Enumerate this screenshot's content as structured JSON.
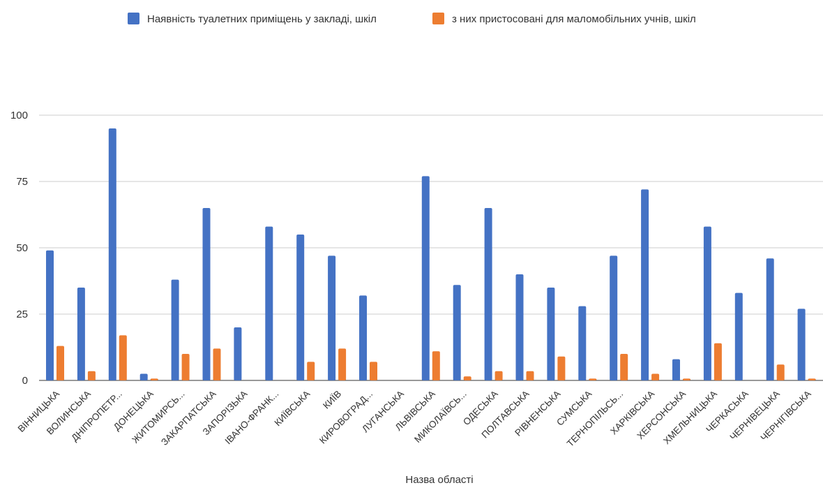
{
  "chart_data": {
    "type": "bar",
    "title": "",
    "xlabel": "Назва області",
    "ylabel": "",
    "ylim": [
      0,
      100
    ],
    "yticks": [
      0,
      25,
      50,
      75,
      100
    ],
    "grid": true,
    "legend_position": "top-center",
    "categories": [
      "ВІННИЦЬКА",
      "ВОЛИНСЬКА",
      "ДНІПРОПЕТР...",
      "ДОНЕЦЬКА",
      "ЖИТОМИРСЬ...",
      "ЗАКАРПАТСЬКА",
      "ЗАПОРІЗЬКА",
      "ІВАНО-ФРАНК...",
      "КИЇВСЬКА",
      "КИЇВ",
      "КИРОВОГРАД...",
      "ЛУГАНСЬКА",
      "ЛЬВІВСЬКА",
      "МИКОЛАЇВСЬ...",
      "ОДЕСЬКА",
      "ПОЛТАВСЬКА",
      "РІВНЕНСЬКА",
      "СУМСЬКА",
      "ТЕРНОПІЛЬСЬ...",
      "ХАРКІВСЬКА",
      "ХЕРСОНСЬКА",
      "ХМЕЛЬНИЦЬКА",
      "ЧЕРКАСЬКА",
      "ЧЕРНІВЕЦЬКА",
      "ЧЕРНІГІВСЬКА"
    ],
    "series": [
      {
        "name": "Наявність туалетних приміщень у закладі, шкіл",
        "color": "#4472c4",
        "values": [
          49,
          35,
          95,
          2.5,
          38,
          65,
          20,
          58,
          55,
          47,
          32,
          0,
          77,
          36,
          65,
          40,
          35,
          28,
          47,
          72,
          8,
          58,
          33,
          46,
          27
        ]
      },
      {
        "name": "з них  пристосовані для маломобільних учнів, шкіл",
        "color": "#ed7d31",
        "values": [
          13,
          3.5,
          17,
          0.7,
          10,
          12,
          0,
          0,
          7,
          12,
          7,
          0,
          11,
          1.5,
          3.5,
          3.5,
          9,
          0.7,
          10,
          2.5,
          0.7,
          14,
          0,
          6,
          0.7
        ]
      }
    ]
  }
}
